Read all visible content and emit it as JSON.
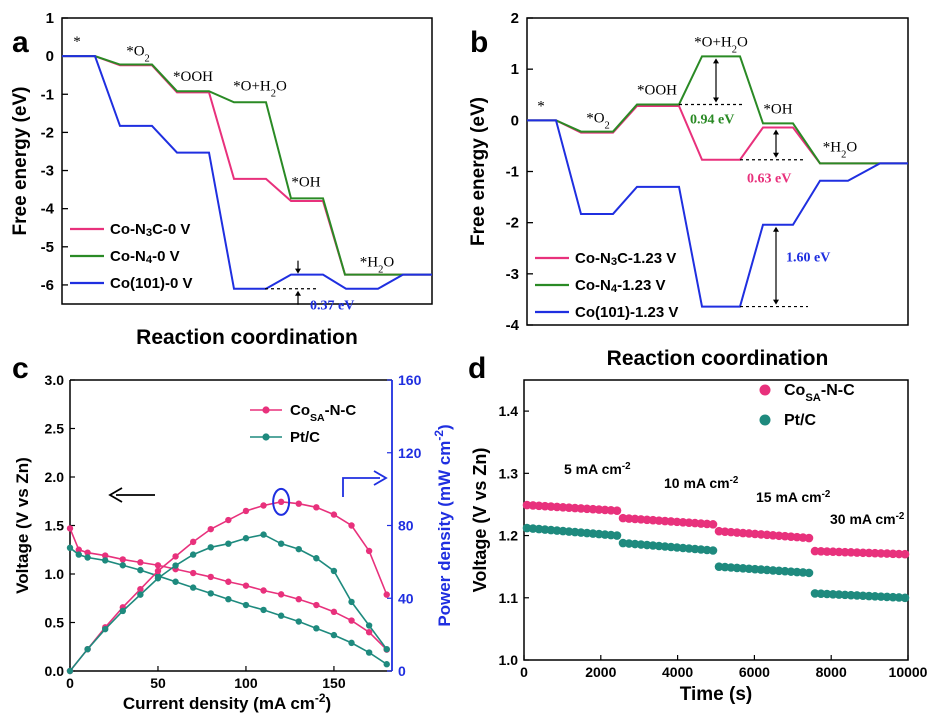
{
  "colors": {
    "pink": "#e8317c",
    "green": "#2a8a25",
    "blue": "#1f2fe0",
    "teal": "#1e8a7e",
    "black": "#000000"
  },
  "panel_letters": [
    "a",
    "b",
    "c",
    "d"
  ],
  "chart_data": [
    {
      "panel": "a",
      "type": "line",
      "style": "step-energy-diagram",
      "xlabel": "Reaction coordination",
      "ylabel": "Free energy (eV)",
      "ylim": [
        -6.5,
        1
      ],
      "yticks": [
        1,
        0,
        -1,
        -2,
        -3,
        -4,
        -5,
        -6
      ],
      "step_labels": [
        "*",
        "*O2",
        "*OOH",
        "*O+H2O",
        "*OH",
        "*H2O"
      ],
      "series": [
        {
          "name": "Co-N3C-0 V",
          "color": "#e8317c",
          "values": [
            0,
            -0.24,
            -0.95,
            -3.22,
            -3.8,
            -5.73
          ]
        },
        {
          "name": "Co-N4-0 V",
          "color": "#2a8a25",
          "values": [
            0,
            -0.22,
            -0.92,
            -1.21,
            -3.73,
            -5.73
          ]
        },
        {
          "name": "Co(101)-0 V",
          "color": "#1f2fe0",
          "values": [
            0,
            -1.83,
            -2.53,
            -6.1,
            -5.73,
            -6.1,
            -5.73
          ]
        }
      ],
      "annotation": {
        "text": "0.37 eV",
        "color": "#1f2fe0"
      },
      "legend": "bottom-left"
    },
    {
      "panel": "b",
      "type": "line",
      "style": "step-energy-diagram",
      "xlabel": "Reaction coordination",
      "ylabel": "Free energy (eV)",
      "ylim": [
        -4,
        2
      ],
      "yticks": [
        2,
        1,
        0,
        -1,
        -2,
        -3,
        -4
      ],
      "step_labels": [
        "*",
        "*O2",
        "*OOH",
        "*O+H2O",
        "*OH",
        "*H2O"
      ],
      "series": [
        {
          "name": "Co-N3C-1.23 V",
          "color": "#e8317c",
          "values": [
            0,
            -0.24,
            0.28,
            -0.77,
            -0.14,
            -0.84
          ]
        },
        {
          "name": "Co-N4-1.23 V",
          "color": "#2a8a25",
          "values": [
            0,
            -0.22,
            0.31,
            1.25,
            -0.06,
            -0.84
          ]
        },
        {
          "name": "Co(101)-1.23 V",
          "color": "#1f2fe0",
          "values": [
            0,
            -1.83,
            -1.3,
            -3.64,
            -2.04,
            -1.18,
            -0.84
          ]
        }
      ],
      "annotations": [
        {
          "text": "0.94 eV",
          "color": "#2a8a25"
        },
        {
          "text": "0.63 eV",
          "color": "#e8317c"
        },
        {
          "text": "1.60 eV",
          "color": "#1f2fe0"
        }
      ],
      "legend": "bottom-left"
    },
    {
      "panel": "c",
      "type": "line",
      "xlabel": "Current density (mA cm-2)",
      "ylabel": "Voltage (V vs Zn)",
      "y2label": "Power density (mW cm-2)",
      "xlim": [
        0,
        183
      ],
      "xticks": [
        0,
        50,
        100,
        150
      ],
      "ylim": [
        0,
        3.0
      ],
      "yticks": [
        0.0,
        0.5,
        1.0,
        1.5,
        2.0,
        2.5,
        3.0
      ],
      "y2lim": [
        0,
        160
      ],
      "y2ticks": [
        0,
        40,
        80,
        120,
        160
      ],
      "series": [
        {
          "name": "CoSA-N-C",
          "axis": "left",
          "color": "#e8317c",
          "x": [
            0,
            5,
            10,
            20,
            30,
            40,
            50,
            60,
            70,
            80,
            90,
            100,
            110,
            120,
            130,
            140,
            150,
            160,
            170,
            180
          ],
          "y": [
            1.47,
            1.25,
            1.22,
            1.19,
            1.15,
            1.12,
            1.09,
            1.05,
            1.01,
            0.97,
            0.92,
            0.88,
            0.83,
            0.79,
            0.74,
            0.68,
            0.61,
            0.52,
            0.4,
            0.22
          ]
        },
        {
          "name": "Pt/C",
          "axis": "left",
          "color": "#1e8a7e",
          "x": [
            0,
            5,
            10,
            20,
            30,
            40,
            50,
            60,
            70,
            80,
            90,
            100,
            110,
            120,
            130,
            140,
            150,
            160,
            170,
            180
          ],
          "y": [
            1.27,
            1.2,
            1.17,
            1.14,
            1.09,
            1.04,
            0.98,
            0.92,
            0.86,
            0.8,
            0.74,
            0.68,
            0.63,
            0.57,
            0.51,
            0.44,
            0.37,
            0.29,
            0.19,
            0.07
          ]
        },
        {
          "name": "CoSA-N-C",
          "axis": "right",
          "color": "#e8317c",
          "x": [
            0,
            10,
            20,
            30,
            40,
            50,
            60,
            70,
            80,
            90,
            100,
            110,
            120,
            130,
            140,
            150,
            160,
            170,
            180
          ],
          "y": [
            0,
            12,
            24,
            35,
            45,
            55,
            63,
            71,
            78,
            83,
            88,
            91,
            93,
            92,
            90,
            86,
            80,
            66,
            42
          ]
        },
        {
          "name": "Pt/C",
          "axis": "right",
          "color": "#1e8a7e",
          "x": [
            0,
            10,
            20,
            30,
            40,
            50,
            60,
            70,
            80,
            90,
            100,
            110,
            120,
            130,
            140,
            150,
            160,
            170,
            180
          ],
          "y": [
            0,
            12,
            23,
            33,
            42,
            51,
            58,
            64,
            68,
            70,
            73,
            75,
            70,
            67,
            62,
            55,
            38,
            25,
            12
          ]
        }
      ],
      "legend_entries": [
        {
          "base": "Co",
          "sub": "SA",
          "rest": "-N-C",
          "color": "#e8317c"
        },
        {
          "base": "Pt/C",
          "sub": "",
          "rest": "",
          "color": "#1e8a7e"
        }
      ],
      "legend": "top-right"
    },
    {
      "panel": "d",
      "type": "scatter",
      "xlabel": "Time (s)",
      "ylabel": "Voltage (V vs Zn)",
      "xlim": [
        0,
        10000
      ],
      "xticks": [
        0,
        2000,
        4000,
        6000,
        8000,
        10000
      ],
      "ylim": [
        1.0,
        1.45
      ],
      "yticks": [
        1.0,
        1.1,
        1.2,
        1.3,
        1.4
      ],
      "segments": [
        {
          "label": "5 mA cm-2",
          "x_range": [
            0,
            2500
          ],
          "CoSA-N-C": [
            1.249,
            1.24
          ],
          "Pt/C": [
            1.212,
            1.2
          ]
        },
        {
          "label": "10 mA cm-2",
          "x_range": [
            2500,
            5000
          ],
          "CoSA-N-C": [
            1.228,
            1.218
          ],
          "Pt/C": [
            1.188,
            1.176
          ]
        },
        {
          "label": "15 mA cm-2",
          "x_range": [
            5000,
            7500
          ],
          "CoSA-N-C": [
            1.207,
            1.196
          ],
          "Pt/C": [
            1.15,
            1.14
          ]
        },
        {
          "label": "30 mA cm-2",
          "x_range": [
            7500,
            10000
          ],
          "CoSA-N-C": [
            1.175,
            1.17
          ],
          "Pt/C": [
            1.107,
            1.1
          ]
        }
      ],
      "series_names": [
        "CoSA-N-C",
        "Pt/C"
      ],
      "legend_entries": [
        {
          "base": "Co",
          "sub": "SA",
          "rest": "-N-C",
          "color": "#e8317c"
        },
        {
          "base": "Pt/C",
          "sub": "",
          "rest": "",
          "color": "#1e8a7e"
        }
      ],
      "legend": "top-right"
    }
  ]
}
